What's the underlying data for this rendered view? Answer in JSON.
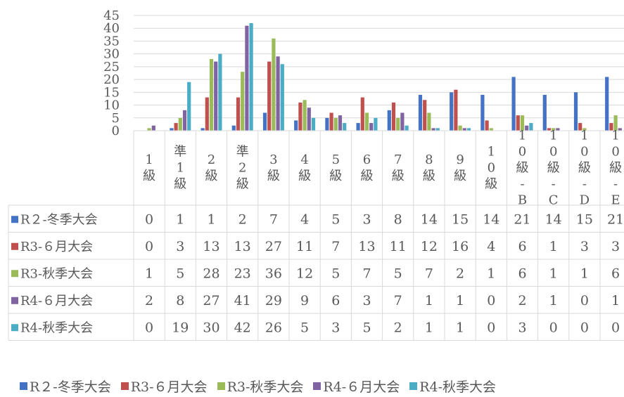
{
  "chart_data": {
    "type": "bar",
    "title": "",
    "xlabel": "",
    "ylabel": "",
    "ylim": [
      0,
      45
    ],
    "yticks": [
      0,
      5,
      10,
      15,
      20,
      25,
      30,
      35,
      40,
      45
    ],
    "grid": true,
    "legend_position": "bottom",
    "categories": [
      "1級",
      "準1級",
      "2級",
      "準2級",
      "3級",
      "4級",
      "5級",
      "6級",
      "7級",
      "8級",
      "9級",
      "10級",
      "10級-B",
      "10級-C",
      "10級-D",
      "10級-E"
    ],
    "series": [
      {
        "name": "R２-冬季大会",
        "color": "#4472C4",
        "values": [
          0,
          1,
          1,
          2,
          7,
          4,
          5,
          3,
          8,
          14,
          15,
          14,
          21,
          14,
          15,
          21
        ]
      },
      {
        "name": "R3-６月大会",
        "color": "#C0504D",
        "values": [
          0,
          3,
          13,
          13,
          27,
          11,
          7,
          13,
          11,
          12,
          16,
          4,
          6,
          1,
          3,
          3
        ]
      },
      {
        "name": "R3-秋季大会",
        "color": "#9BBB59",
        "values": [
          1,
          5,
          28,
          23,
          36,
          12,
          5,
          7,
          5,
          7,
          2,
          1,
          6,
          1,
          1,
          6
        ]
      },
      {
        "name": "R4-６月大会",
        "color": "#8064A2",
        "values": [
          2,
          8,
          27,
          41,
          29,
          9,
          6,
          3,
          7,
          1,
          1,
          0,
          2,
          1,
          0,
          1
        ]
      },
      {
        "name": "R4-秋季大会",
        "color": "#4BACC6",
        "values": [
          0,
          19,
          30,
          42,
          26,
          5,
          3,
          5,
          2,
          1,
          1,
          0,
          3,
          0,
          0,
          0
        ]
      }
    ]
  }
}
